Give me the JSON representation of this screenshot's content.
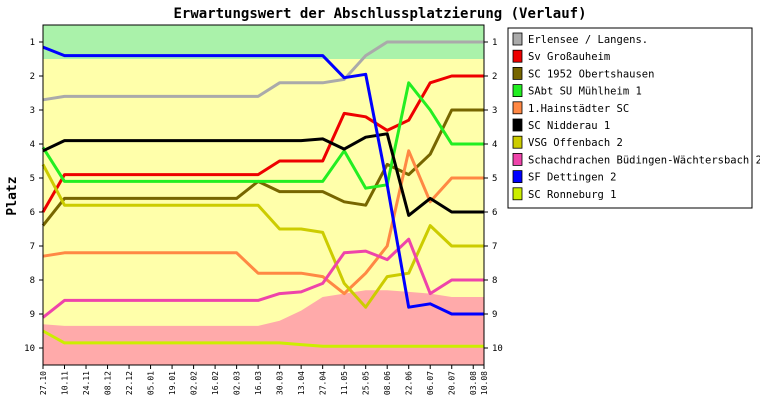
{
  "chart_data": {
    "type": "line",
    "title": "Erwartungswert der Abschlussplatzierung (Verlauf)",
    "ylabel": "Platz",
    "xlabel": "",
    "ylim": [
      0.5,
      10.5
    ],
    "y_inverted": true,
    "y_ticks": [
      "1",
      "2",
      "3",
      "4",
      "5",
      "6",
      "7",
      "8",
      "9",
      "10"
    ],
    "x": [
      "27.10",
      "10.11",
      "24.11",
      "08.12",
      "22.12",
      "05.01",
      "19.01",
      "02.02",
      "16.02",
      "02.03",
      "16.03",
      "30.03",
      "13.04",
      "27.04",
      "11.05",
      "25.05",
      "08.06",
      "22.06",
      "06.07",
      "20.07",
      "03.08",
      "10.08"
    ],
    "x_positions": [
      0,
      1,
      2,
      3,
      4,
      5,
      6,
      7,
      8,
      9,
      10,
      11,
      12,
      13,
      14,
      15,
      16,
      17,
      18,
      19,
      20,
      20.5
    ],
    "grid": false,
    "legend_position": "right",
    "background_bands": [
      {
        "from": 0.5,
        "to": 1.5,
        "color": "#aaf2aa"
      },
      {
        "from": 1.5,
        "to": 10.5,
        "color": "#ffffaa"
      }
    ],
    "pink_area": {
      "color": "#ffaaaa",
      "top": [
        9.3,
        9.35,
        9.35,
        9.35,
        9.35,
        9.35,
        9.35,
        9.35,
        9.35,
        9.35,
        9.35,
        9.2,
        8.9,
        8.5,
        8.4,
        8.3,
        8.3,
        8.35,
        8.4,
        8.5,
        8.5,
        8.5
      ]
    },
    "series": [
      {
        "name": "Erlensee / Langens.",
        "color": "#aaaaaa",
        "values": [
          2.7,
          2.6,
          2.6,
          2.6,
          2.6,
          2.6,
          2.6,
          2.6,
          2.6,
          2.6,
          2.6,
          2.2,
          2.2,
          2.2,
          2.1,
          1.4,
          1.0,
          1.0,
          1.0,
          1.0,
          1.0,
          1.0
        ]
      },
      {
        "name": "Sv Großauheim",
        "color": "#ee0000",
        "values": [
          6.0,
          4.9,
          4.9,
          4.9,
          4.9,
          4.9,
          4.9,
          4.9,
          4.9,
          4.9,
          4.9,
          4.5,
          4.5,
          4.5,
          3.1,
          3.2,
          3.6,
          3.3,
          2.2,
          2.0,
          2.0,
          2.0
        ]
      },
      {
        "name": "SC 1952 Obertshausen",
        "color": "#776600",
        "values": [
          6.4,
          5.6,
          5.6,
          5.6,
          5.6,
          5.6,
          5.6,
          5.6,
          5.6,
          5.6,
          5.1,
          5.4,
          5.4,
          5.4,
          5.7,
          5.8,
          4.6,
          4.9,
          4.3,
          3.0,
          3.0,
          3.0
        ]
      },
      {
        "name": "SAbt SU Mühlheim 1",
        "color": "#22ee22",
        "values": [
          4.1,
          5.1,
          5.1,
          5.1,
          5.1,
          5.1,
          5.1,
          5.1,
          5.1,
          5.1,
          5.1,
          5.1,
          5.1,
          5.1,
          4.2,
          5.3,
          5.2,
          2.2,
          3.0,
          4.0,
          4.0,
          4.0
        ]
      },
      {
        "name": "1.Hainstädter SC",
        "color": "#ff8844",
        "values": [
          7.3,
          7.2,
          7.2,
          7.2,
          7.2,
          7.2,
          7.2,
          7.2,
          7.2,
          7.2,
          7.8,
          7.8,
          7.8,
          7.9,
          8.4,
          7.8,
          7.0,
          4.2,
          5.7,
          5.0,
          5.0,
          5.0
        ]
      },
      {
        "name": "SC Nidderau 1",
        "color": "#000000",
        "values": [
          4.2,
          3.9,
          3.9,
          3.9,
          3.9,
          3.9,
          3.9,
          3.9,
          3.9,
          3.9,
          3.9,
          3.9,
          3.9,
          3.85,
          4.15,
          3.8,
          3.7,
          6.1,
          5.6,
          6.0,
          6.0,
          6.0
        ]
      },
      {
        "name": "VSG Offenbach 2",
        "color": "#cccc00",
        "values": [
          4.6,
          5.8,
          5.8,
          5.8,
          5.8,
          5.8,
          5.8,
          5.8,
          5.8,
          5.8,
          5.8,
          6.5,
          6.5,
          6.6,
          8.1,
          8.8,
          7.9,
          7.8,
          6.4,
          7.0,
          7.0,
          7.0
        ]
      },
      {
        "name": "Schachdrachen Büdingen-Wächtersbach 2",
        "color": "#ee44aa",
        "values": [
          9.1,
          8.6,
          8.6,
          8.6,
          8.6,
          8.6,
          8.6,
          8.6,
          8.6,
          8.6,
          8.6,
          8.4,
          8.35,
          8.1,
          7.2,
          7.15,
          7.4,
          6.8,
          8.4,
          8.0,
          8.0,
          8.0
        ]
      },
      {
        "name": "SF Dettingen 2",
        "color": "#0000ff",
        "values": [
          1.15,
          1.4,
          1.4,
          1.4,
          1.4,
          1.4,
          1.4,
          1.4,
          1.4,
          1.4,
          1.4,
          1.4,
          1.4,
          1.4,
          2.05,
          1.95,
          5.2,
          8.8,
          8.7,
          9.0,
          9.0,
          9.0
        ]
      },
      {
        "name": "SC Ronneburg 1",
        "color": "#ccee00",
        "values": [
          9.5,
          9.85,
          9.85,
          9.85,
          9.85,
          9.85,
          9.85,
          9.85,
          9.85,
          9.85,
          9.85,
          9.85,
          9.9,
          9.95,
          9.95,
          9.95,
          9.95,
          9.95,
          9.95,
          9.95,
          9.95,
          9.95
        ]
      }
    ]
  }
}
